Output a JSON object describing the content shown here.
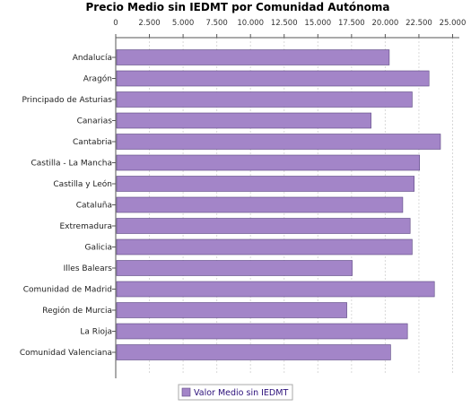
{
  "chart_data": {
    "type": "bar",
    "orientation": "horizontal",
    "title": "Precio Medio sin IEDMT por Comunidad Autónoma",
    "categories": [
      "Andalucía",
      "Aragón",
      "Principado de Asturias",
      "Canarias",
      "Cantabria",
      "Castilla - La Mancha",
      "Castilla y León",
      "Cataluña",
      "Extremadura",
      "Galicia",
      "Illes Balears",
      "Comunidad de Madrid",
      "Región de Murcia",
      "La Rioja",
      "Comunidad Valenciana"
    ],
    "series": [
      {
        "name": "Valor Medio sin IEDMT",
        "values": [
          20300,
          23250,
          22000,
          18950,
          24100,
          22550,
          22150,
          21300,
          21850,
          22000,
          17550,
          23650,
          17150,
          21650,
          20400
        ]
      }
    ],
    "xlim": [
      0,
      25500
    ],
    "xticks": [
      "0",
      "2.500",
      "5.000",
      "7.500",
      "10.000",
      "12.500",
      "15.000",
      "17.500",
      "20.000",
      "22.500",
      "25.000"
    ],
    "xtick_values": [
      0,
      2500,
      5000,
      7500,
      10000,
      12500,
      15000,
      17500,
      20000,
      22500,
      25000
    ],
    "grid": true,
    "x_axis_position": "top",
    "legend_position": "bottom",
    "colors": {
      "bar_fill": "#a385c8",
      "bar_stroke": "#5a4680",
      "grid": "#d8d8d8",
      "legend_text": "#2b0f7a"
    }
  }
}
